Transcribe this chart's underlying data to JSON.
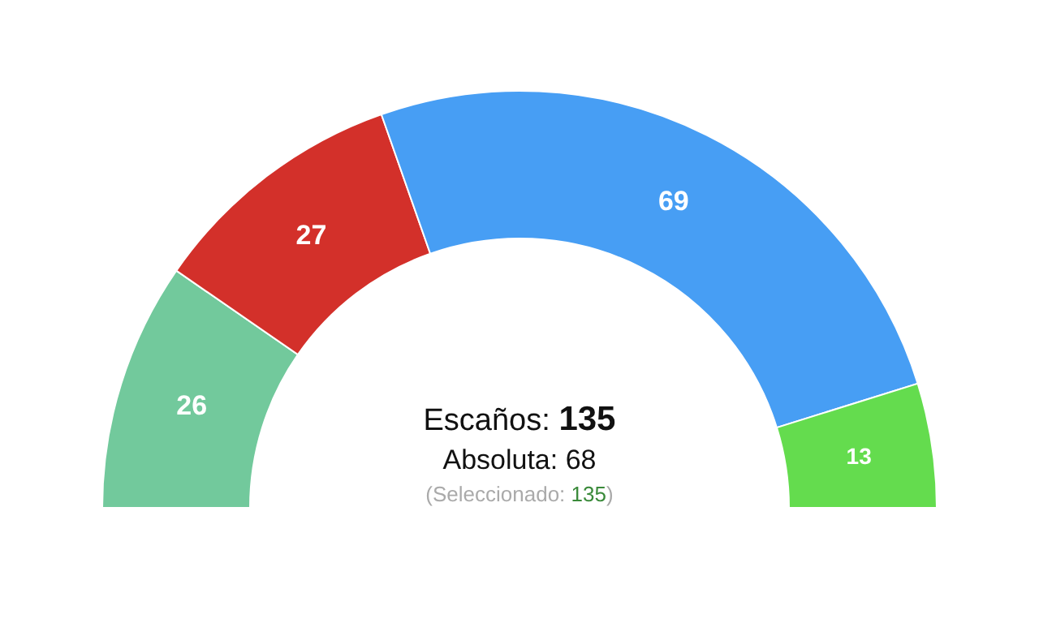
{
  "chart_data": {
    "type": "donut",
    "categories": [
      null,
      null,
      null,
      null
    ],
    "values": [
      26,
      27,
      69,
      13
    ],
    "colors": [
      "#72c99c",
      "#d3302a",
      "#479ef4",
      "#64dc4e"
    ],
    "data_labels": true,
    "annotations": [
      "Escaños: 135",
      "Absoluta: 68",
      "(Seleccionado: 135)"
    ]
  }
}
